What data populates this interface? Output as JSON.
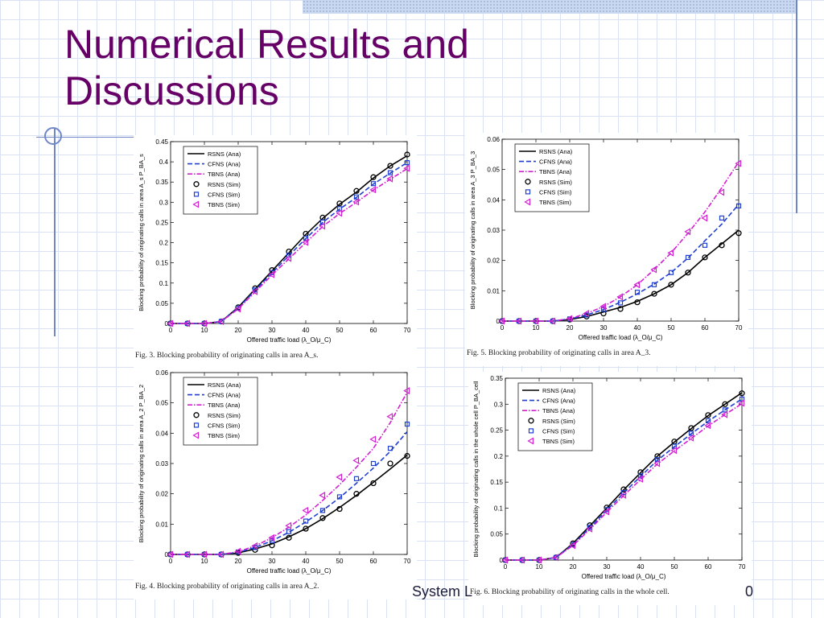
{
  "slide": {
    "title": "Numerical Results and Discussions",
    "footer": "System L",
    "page_number": "0"
  },
  "chart_data": [
    {
      "type": "line",
      "caption": "Fig. 3.   Blocking probability of originating calls in area A_s.",
      "xlabel": "Offered traffic load (λ_O/μ_C)",
      "ylabel": "Blocking probability of originating calls in area A_s P_BA_s",
      "xlim": [
        0,
        70
      ],
      "ylim": [
        0,
        0.45
      ],
      "xticks": [
        0,
        10,
        20,
        30,
        40,
        50,
        60,
        70
      ],
      "yticks": [
        0,
        0.05,
        0.1,
        0.15,
        0.2,
        0.25,
        0.3,
        0.35,
        0.4,
        0.45
      ],
      "ytick_labels": [
        "0",
        "0.05",
        "0.1",
        "0.15",
        "0.2",
        "0.25",
        "0.3",
        "0.35",
        "0.4",
        "0.45"
      ],
      "legend_position": "top-left",
      "x": [
        0,
        5,
        10,
        15,
        20,
        25,
        30,
        35,
        40,
        45,
        50,
        55,
        60,
        65,
        70
      ],
      "series": [
        {
          "name": "RSNS (Ana)",
          "style": "solid",
          "color": "#000000",
          "values": [
            0,
            0,
            0,
            0.005,
            0.04,
            0.085,
            0.13,
            0.175,
            0.22,
            0.26,
            0.295,
            0.325,
            0.36,
            0.39,
            0.415
          ]
        },
        {
          "name": "CFNS (Ana)",
          "style": "dashed",
          "color": "#1f3fd1",
          "values": [
            0,
            0,
            0,
            0.005,
            0.038,
            0.082,
            0.125,
            0.168,
            0.21,
            0.25,
            0.283,
            0.312,
            0.345,
            0.372,
            0.398
          ]
        },
        {
          "name": "TBNS (Ana)",
          "style": "dashdot",
          "color": "#d21fd2",
          "values": [
            0,
            0,
            0,
            0.005,
            0.036,
            0.078,
            0.12,
            0.16,
            0.2,
            0.24,
            0.272,
            0.3,
            0.33,
            0.357,
            0.383
          ]
        },
        {
          "name": "RSNS (Sim)",
          "marker": "circle",
          "color": "#000000",
          "values": [
            0,
            0,
            0,
            0.005,
            0.04,
            0.087,
            0.132,
            0.178,
            0.222,
            0.262,
            0.297,
            0.328,
            0.362,
            0.39,
            0.418
          ]
        },
        {
          "name": "CFNS (Sim)",
          "marker": "square",
          "color": "#1f3fd1",
          "values": [
            0,
            0,
            0,
            0.005,
            0.038,
            0.083,
            0.126,
            0.169,
            0.211,
            0.251,
            0.284,
            0.313,
            0.346,
            0.373,
            0.398
          ]
        },
        {
          "name": "TBNS (Sim)",
          "marker": "triangle",
          "color": "#d21fd2",
          "values": [
            0,
            0,
            0,
            0.005,
            0.036,
            0.079,
            0.121,
            0.161,
            0.201,
            0.241,
            0.273,
            0.301,
            0.331,
            0.358,
            0.384
          ]
        }
      ]
    },
    {
      "type": "line",
      "caption": "Fig. 5.   Blocking probability of originating calls in area A_3.",
      "xlabel": "Offered traffic load (λ_O/μ_C)",
      "ylabel": "Blocking probability of originating calls in area A_3 P_BA_3",
      "xlim": [
        0,
        70
      ],
      "ylim": [
        0,
        0.06
      ],
      "xticks": [
        0,
        10,
        20,
        30,
        40,
        50,
        60,
        70
      ],
      "yticks": [
        0,
        0.01,
        0.02,
        0.03,
        0.04,
        0.05,
        0.06
      ],
      "ytick_labels": [
        "0",
        "0.01",
        "0.02",
        "0.03",
        "0.04",
        "0.05",
        "0.06"
      ],
      "legend_position": "top-left",
      "x": [
        0,
        5,
        10,
        15,
        20,
        25,
        30,
        35,
        40,
        45,
        50,
        55,
        60,
        65,
        70
      ],
      "series": [
        {
          "name": "RSNS (Ana)",
          "style": "solid",
          "color": "#000000",
          "values": [
            0,
            0,
            0,
            0,
            0.0005,
            0.0015,
            0.003,
            0.0045,
            0.0065,
            0.009,
            0.012,
            0.016,
            0.021,
            0.0255,
            0.03
          ]
        },
        {
          "name": "CFNS (Ana)",
          "style": "dashed",
          "color": "#1f3fd1",
          "values": [
            0,
            0,
            0,
            0,
            0.0007,
            0.002,
            0.0038,
            0.0062,
            0.009,
            0.0122,
            0.016,
            0.0208,
            0.0265,
            0.032,
            0.0385
          ]
        },
        {
          "name": "TBNS (Ana)",
          "style": "dashdot",
          "color": "#d21fd2",
          "values": [
            0,
            0,
            0,
            0,
            0.0008,
            0.0025,
            0.0048,
            0.008,
            0.012,
            0.017,
            0.0225,
            0.029,
            0.036,
            0.044,
            0.0525
          ]
        },
        {
          "name": "RSNS (Sim)",
          "marker": "circle",
          "color": "#000000",
          "values": [
            0,
            0,
            0,
            0,
            0.0005,
            0.0015,
            0.0025,
            0.004,
            0.0062,
            0.009,
            0.012,
            0.016,
            0.021,
            0.025,
            0.029
          ]
        },
        {
          "name": "CFNS (Sim)",
          "marker": "square",
          "color": "#1f3fd1",
          "values": [
            0,
            0,
            0,
            0,
            0.0007,
            0.002,
            0.0038,
            0.006,
            0.0095,
            0.012,
            0.016,
            0.021,
            0.025,
            0.034,
            0.038
          ]
        },
        {
          "name": "TBNS (Sim)",
          "marker": "triangle",
          "color": "#d21fd2",
          "values": [
            0,
            0,
            0,
            0,
            0.0008,
            0.0025,
            0.0048,
            0.008,
            0.012,
            0.017,
            0.0225,
            0.0295,
            0.034,
            0.0425,
            0.052
          ]
        }
      ]
    },
    {
      "type": "line",
      "caption": "Fig. 4.   Blocking probability of originating calls in area A_2.",
      "xlabel": "Offered traffic load (λ_O/μ_C)",
      "ylabel": "Blocking probability of originating calls in area A_2 P_BA_2",
      "xlim": [
        0,
        70
      ],
      "ylim": [
        0,
        0.06
      ],
      "xticks": [
        0,
        10,
        20,
        30,
        40,
        50,
        60,
        70
      ],
      "yticks": [
        0,
        0.01,
        0.02,
        0.03,
        0.04,
        0.05,
        0.06
      ],
      "ytick_labels": [
        "0",
        "0.01",
        "0.02",
        "0.03",
        "0.04",
        "0.05",
        "0.06"
      ],
      "legend_position": "top-left",
      "x": [
        0,
        5,
        10,
        15,
        20,
        25,
        30,
        35,
        40,
        45,
        50,
        55,
        60,
        65,
        70
      ],
      "series": [
        {
          "name": "RSNS (Ana)",
          "style": "solid",
          "color": "#000000",
          "values": [
            0,
            0,
            0,
            0,
            0.0005,
            0.0018,
            0.0035,
            0.0058,
            0.0085,
            0.0118,
            0.0155,
            0.0195,
            0.0238,
            0.0282,
            0.0328
          ]
        },
        {
          "name": "CFNS (Ana)",
          "style": "dashed",
          "color": "#1f3fd1",
          "values": [
            0,
            0,
            0,
            0,
            0.0007,
            0.0023,
            0.0045,
            0.0073,
            0.0107,
            0.0145,
            0.0187,
            0.0235,
            0.0285,
            0.034,
            0.0405
          ]
        },
        {
          "name": "TBNS (Ana)",
          "style": "dashdot",
          "color": "#d21fd2",
          "values": [
            0,
            0,
            0,
            0,
            0.0009,
            0.0028,
            0.0055,
            0.009,
            0.013,
            0.0178,
            0.023,
            0.0288,
            0.035,
            0.0435,
            0.0535
          ]
        },
        {
          "name": "RSNS (Sim)",
          "marker": "circle",
          "color": "#000000",
          "values": [
            0,
            0,
            0,
            0,
            0.0005,
            0.0015,
            0.003,
            0.0055,
            0.0085,
            0.012,
            0.015,
            0.02,
            0.0235,
            0.03,
            0.0325
          ]
        },
        {
          "name": "CFNS (Sim)",
          "marker": "square",
          "color": "#1f3fd1",
          "values": [
            0,
            0,
            0,
            0,
            0.0008,
            0.0023,
            0.0045,
            0.0075,
            0.011,
            0.0145,
            0.019,
            0.025,
            0.03,
            0.035,
            0.043
          ]
        },
        {
          "name": "TBNS (Sim)",
          "marker": "triangle",
          "color": "#d21fd2",
          "values": [
            0,
            0,
            0,
            0,
            0.001,
            0.0028,
            0.0055,
            0.0095,
            0.0145,
            0.0195,
            0.0255,
            0.031,
            0.038,
            0.0455,
            0.054
          ]
        }
      ]
    },
    {
      "type": "line",
      "caption": "Fig. 6.   Blocking probability of originating calls in the whole cell.",
      "xlabel": "Offered traffic load (λ_O/μ_C)",
      "ylabel": "Blocking probability of originating calls in the whole cell P_BA_cell",
      "xlim": [
        0,
        70
      ],
      "ylim": [
        0,
        0.35
      ],
      "xticks": [
        0,
        10,
        20,
        30,
        40,
        50,
        60,
        70
      ],
      "yticks": [
        0,
        0.05,
        0.1,
        0.15,
        0.2,
        0.25,
        0.3,
        0.35
      ],
      "ytick_labels": [
        "0",
        "0.05",
        "0.1",
        "0.15",
        "0.2",
        "0.25",
        "0.3",
        "0.35"
      ],
      "legend_position": "top-left",
      "x": [
        0,
        5,
        10,
        15,
        20,
        25,
        30,
        35,
        40,
        45,
        50,
        55,
        60,
        65,
        70
      ],
      "series": [
        {
          "name": "RSNS (Ana)",
          "style": "solid",
          "color": "#000000",
          "values": [
            0,
            0,
            0,
            0.005,
            0.032,
            0.066,
            0.1,
            0.135,
            0.168,
            0.2,
            0.227,
            0.253,
            0.278,
            0.3,
            0.322
          ]
        },
        {
          "name": "CFNS (Ana)",
          "style": "dashed",
          "color": "#1f3fd1",
          "values": [
            0,
            0,
            0,
            0.005,
            0.03,
            0.062,
            0.096,
            0.129,
            0.161,
            0.192,
            0.218,
            0.243,
            0.267,
            0.289,
            0.31
          ]
        },
        {
          "name": "TBNS (Ana)",
          "style": "dashdot",
          "color": "#d21fd2",
          "values": [
            0,
            0,
            0,
            0.005,
            0.028,
            0.059,
            0.092,
            0.124,
            0.155,
            0.185,
            0.21,
            0.234,
            0.258,
            0.28,
            0.301
          ]
        },
        {
          "name": "RSNS (Sim)",
          "marker": "circle",
          "color": "#000000",
          "values": [
            0,
            0,
            0,
            0.005,
            0.032,
            0.067,
            0.101,
            0.136,
            0.169,
            0.2,
            0.228,
            0.254,
            0.279,
            0.3,
            0.321
          ]
        },
        {
          "name": "CFNS (Sim)",
          "marker": "square",
          "color": "#1f3fd1",
          "values": [
            0,
            0,
            0,
            0.005,
            0.03,
            0.063,
            0.097,
            0.13,
            0.162,
            0.193,
            0.219,
            0.244,
            0.268,
            0.289,
            0.31
          ]
        },
        {
          "name": "TBNS (Sim)",
          "marker": "triangle",
          "color": "#d21fd2",
          "values": [
            0,
            0,
            0,
            0.005,
            0.028,
            0.06,
            0.093,
            0.125,
            0.156,
            0.186,
            0.211,
            0.235,
            0.259,
            0.28,
            0.302
          ]
        }
      ]
    }
  ]
}
